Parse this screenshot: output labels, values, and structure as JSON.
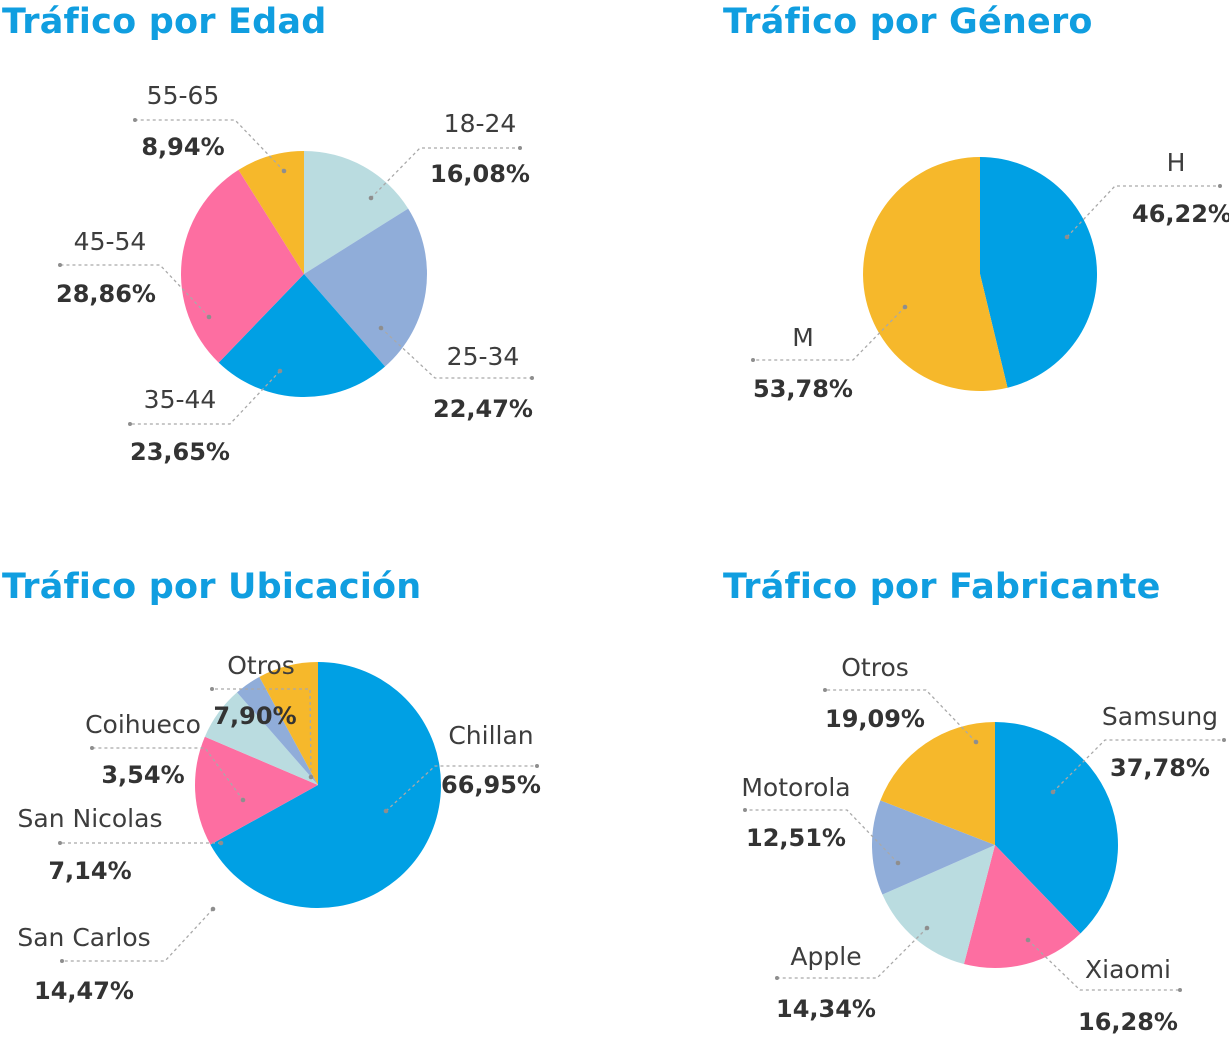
{
  "colors": {
    "title": "#109ee0",
    "blue": "#00a0e4",
    "yellow": "#f6b82b",
    "pink": "#fd6ea1",
    "lavender": "#90add9",
    "lightblue": "#badce0"
  },
  "chart_data": [
    {
      "type": "pie",
      "title": "Tráfico por Edad",
      "categories": [
        "18-24",
        "25-34",
        "35-44",
        "45-54",
        "55-65"
      ],
      "labels": [
        "16,08%",
        "22,47%",
        "23,65%",
        "28,86%",
        "8,94%"
      ],
      "values": [
        16.08,
        22.47,
        23.65,
        28.86,
        8.94
      ],
      "colors": [
        "#badce0",
        "#90add9",
        "#00a0e4",
        "#fd6ea1",
        "#f6b82b"
      ]
    },
    {
      "type": "pie",
      "title": "Tráfico por Género",
      "categories": [
        "H",
        "M"
      ],
      "labels": [
        "46,22%",
        "53,78%"
      ],
      "values": [
        46.22,
        53.78
      ],
      "colors": [
        "#00a0e4",
        "#f6b82b"
      ]
    },
    {
      "type": "pie",
      "title": "Tráfico por Ubicación",
      "categories": [
        "Chillan",
        "San Carlos",
        "San Nicolas",
        "Coihueco",
        "Otros"
      ],
      "labels": [
        "66,95%",
        "14,47%",
        "7,14%",
        "3,54%",
        "7,90%"
      ],
      "values": [
        66.95,
        14.47,
        7.14,
        3.54,
        7.9
      ],
      "colors": [
        "#00a0e4",
        "#fd6ea1",
        "#badce0",
        "#90add9",
        "#f6b82b"
      ]
    },
    {
      "type": "pie",
      "title": "Tráfico por Fabricante",
      "categories": [
        "Samsung",
        "Xiaomi",
        "Apple",
        "Motorola",
        "Otros"
      ],
      "labels": [
        "37,78%",
        "16,28%",
        "14,34%",
        "12,51%",
        "19,09%"
      ],
      "values": [
        37.78,
        16.28,
        14.34,
        12.51,
        19.09
      ],
      "colors": [
        "#00a0e4",
        "#fd6ea1",
        "#badce0",
        "#90add9",
        "#f6b82b"
      ]
    }
  ]
}
